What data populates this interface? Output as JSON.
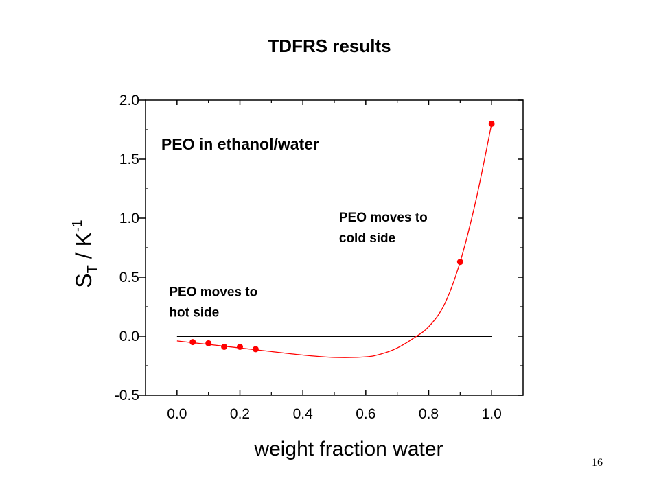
{
  "slide": {
    "title": "TDFRS results",
    "page_number": "16"
  },
  "chart_data": {
    "type": "scatter",
    "title": "TDFRS results",
    "xlabel": "weight fraction water",
    "ylabel_main": "S",
    "ylabel_sub": "T",
    "ylabel_rest": " / K",
    "ylabel_sup": "-1",
    "xlim": [
      -0.1,
      1.1
    ],
    "ylim": [
      -0.5,
      2.0
    ],
    "x_ticks": [
      0.0,
      0.2,
      0.4,
      0.6,
      0.8,
      1.0
    ],
    "x_tick_labels": [
      "0.0",
      "0.2",
      "0.4",
      "0.6",
      "0.8",
      "1.0"
    ],
    "y_ticks": [
      -0.5,
      0.0,
      0.5,
      1.0,
      1.5,
      2.0
    ],
    "y_tick_labels": [
      "-0.5",
      "0.0",
      "0.5",
      "1.0",
      "1.5",
      "2.0"
    ],
    "grid": false,
    "series": [
      {
        "points": [
          [
            0.05,
            -0.05
          ],
          [
            0.1,
            -0.06
          ],
          [
            0.15,
            -0.09
          ],
          [
            0.2,
            -0.09
          ],
          [
            0.25,
            -0.11
          ],
          [
            0.9,
            0.63
          ],
          [
            1.0,
            1.8
          ]
        ],
        "color": "#ff0000"
      },
      {
        "fit_curve": [
          [
            0.0,
            -0.04
          ],
          [
            0.1,
            -0.07
          ],
          [
            0.2,
            -0.1
          ],
          [
            0.3,
            -0.13
          ],
          [
            0.4,
            -0.16
          ],
          [
            0.5,
            -0.18
          ],
          [
            0.6,
            -0.175
          ],
          [
            0.65,
            -0.15
          ],
          [
            0.7,
            -0.1
          ],
          [
            0.75,
            -0.02
          ],
          [
            0.8,
            0.08
          ],
          [
            0.85,
            0.27
          ],
          [
            0.9,
            0.63
          ],
          [
            0.95,
            1.15
          ],
          [
            1.0,
            1.8
          ]
        ],
        "color": "#ff0000"
      },
      {
        "zero_line": [
          [
            0.0,
            0.0
          ],
          [
            1.0,
            0.0
          ]
        ],
        "color": "#000000"
      }
    ],
    "annotations": [
      {
        "text": "PEO in ethanol/water",
        "x": -0.05,
        "y": 1.58
      },
      {
        "text_line1": "PEO moves to",
        "text_line2": "cold side",
        "x": 0.515,
        "y": 0.97
      },
      {
        "text_line1": "PEO moves to",
        "text_line2": "hot side",
        "x": -0.025,
        "y": 0.34
      }
    ]
  }
}
